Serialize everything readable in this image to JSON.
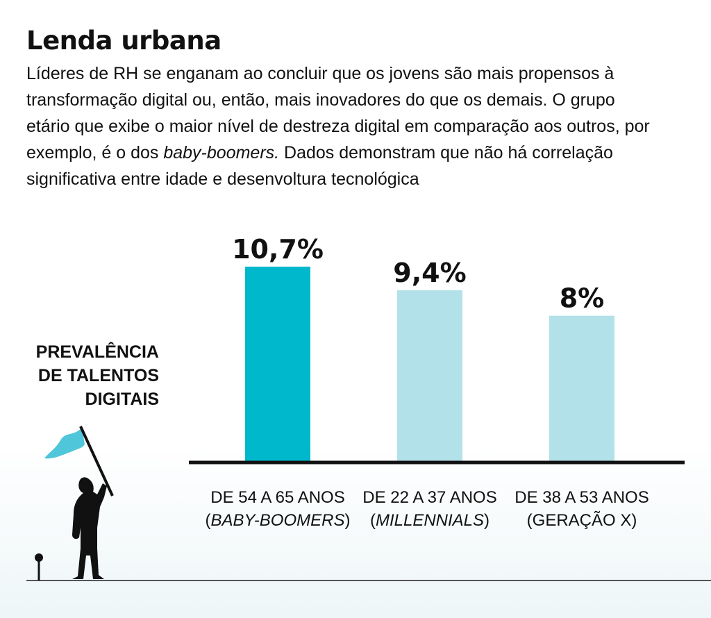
{
  "header": {
    "title": "Lenda urbana",
    "subtitle_before": "Líderes de RH se enganam ao concluir que os jovens são mais propensos à transformação digital ou, então, mais inovadores do que os demais. O grupo etário que exibe o maior nível de destreza digital em comparação aos outros, por exemplo, é o dos ",
    "subtitle_italic": "baby-boomers.",
    "subtitle_after": " Dados demonstram que não há correlação significativa entre idade e desenvoltura tecnológica"
  },
  "chart_data": {
    "type": "bar",
    "ylabel_lines": [
      "PREVALÊNCIA",
      "DE TALENTOS",
      "DIGITAIS"
    ],
    "categories": [
      {
        "line1": "DE 54 A 65 ANOS",
        "open": "(",
        "italic": "BABY-BOOMERS",
        "close": ")"
      },
      {
        "line1": "DE 22 A 37 ANOS",
        "open": "(",
        "italic": "MILLENNIALS",
        "close": ")"
      },
      {
        "line1": "DE 38 A 53 ANOS",
        "open": "",
        "italic": "",
        "close": "(GERAÇÃO X)"
      }
    ],
    "values": [
      10.7,
      9.4,
      8
    ],
    "value_labels": [
      "10,7%",
      "9,4%",
      "8%"
    ],
    "colors": [
      "#00b8cc",
      "#b3e1ea",
      "#b3e1ea"
    ],
    "ylim": [
      0,
      12
    ],
    "grid": false,
    "legend": "none"
  },
  "colors": {
    "axis": "#111111",
    "flag": "#4fc6d9",
    "silhouette": "#111111"
  },
  "icons": {
    "illustration": "person-with-flag-silhouette"
  }
}
